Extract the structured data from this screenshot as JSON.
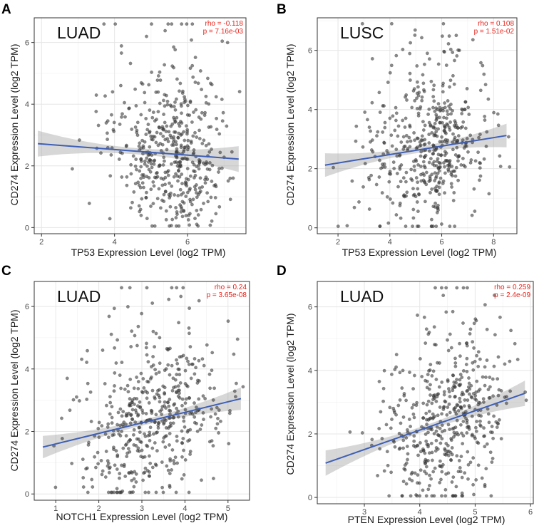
{
  "chart_data": [
    {
      "type": "scatter",
      "panel_label": "A",
      "cohort": "LUAD",
      "rho_text": "rho = -0.118",
      "p_text": "p = 7.16e-03",
      "xlabel": "TP53 Expression Level (log2 TPM)",
      "ylabel": "CD274 Expression Level (log2 TPM)",
      "xlim": [
        1.8,
        7.6
      ],
      "ylim": [
        -0.2,
        6.8
      ],
      "xticks": [
        2,
        4,
        6
      ],
      "yticks": [
        0,
        2,
        4,
        6
      ],
      "n_points": 500,
      "point_seed": 11,
      "x_cluster": {
        "mean": 5.6,
        "sd": 0.9,
        "skew": -1
      },
      "fit": {
        "x": [
          1.9,
          7.4
        ],
        "y": [
          2.72,
          2.22
        ],
        "band_halfwidth_ends": 0.42,
        "band_halfwidth_mid": 0.1
      }
    },
    {
      "type": "scatter",
      "panel_label": "B",
      "cohort": "LUSC",
      "rho_text": "rho = 0.108",
      "p_text": "p = 1.51e-02",
      "xlabel": "TP53 Expression Level (log2 TPM)",
      "ylabel": "CD274 Expression Level (log2 TPM)",
      "xlim": [
        1.2,
        8.9
      ],
      "ylim": [
        -0.2,
        7.1
      ],
      "xticks": [
        2,
        4,
        6,
        8
      ],
      "yticks": [
        0,
        2,
        4,
        6
      ],
      "n_points": 500,
      "point_seed": 23,
      "x_cluster": {
        "mean": 5.6,
        "sd": 1.3,
        "skew": -1
      },
      "fit": {
        "x": [
          1.5,
          8.5
        ],
        "y": [
          2.12,
          3.12
        ],
        "band_halfwidth_ends": 0.4,
        "band_halfwidth_mid": 0.1
      }
    },
    {
      "type": "scatter",
      "panel_label": "C",
      "cohort": "LUAD",
      "rho_text": "rho = 0.24",
      "p_text": "p = 3.65e-08",
      "xlabel": "NOTCH1 Expression Level (log2 TPM)",
      "ylabel": "CD274 Expression Level (log2 TPM)",
      "xlim": [
        0.5,
        5.5
      ],
      "ylim": [
        -0.2,
        6.8
      ],
      "xticks": [
        1,
        2,
        3,
        4,
        5
      ],
      "yticks": [
        0,
        2,
        4,
        6
      ],
      "n_points": 500,
      "point_seed": 37,
      "x_cluster": {
        "mean": 3.3,
        "sd": 0.8,
        "skew": 0
      },
      "fit": {
        "x": [
          0.7,
          5.3
        ],
        "y": [
          1.5,
          3.05
        ],
        "band_halfwidth_ends": 0.36,
        "band_halfwidth_mid": 0.09
      }
    },
    {
      "type": "scatter",
      "panel_label": "D",
      "cohort": "LUAD",
      "rho_text": "rho = 0.259",
      "p_text": "p = 2.4e-09",
      "xlabel": "PTEN Expression Level (log2 TPM)",
      "ylabel": "CD274 Expression Level (log2 TPM)",
      "xlim": [
        2.15,
        6.05
      ],
      "ylim": [
        -0.2,
        6.8
      ],
      "xticks": [
        3,
        4,
        5,
        6
      ],
      "yticks": [
        0,
        2,
        4,
        6
      ],
      "n_points": 500,
      "point_seed": 53,
      "x_cluster": {
        "mean": 4.45,
        "sd": 0.55,
        "skew": 0
      },
      "fit": {
        "x": [
          2.3,
          5.9
        ],
        "y": [
          1.08,
          3.28
        ],
        "band_halfwidth_ends": 0.4,
        "band_halfwidth_mid": 0.09
      }
    }
  ]
}
